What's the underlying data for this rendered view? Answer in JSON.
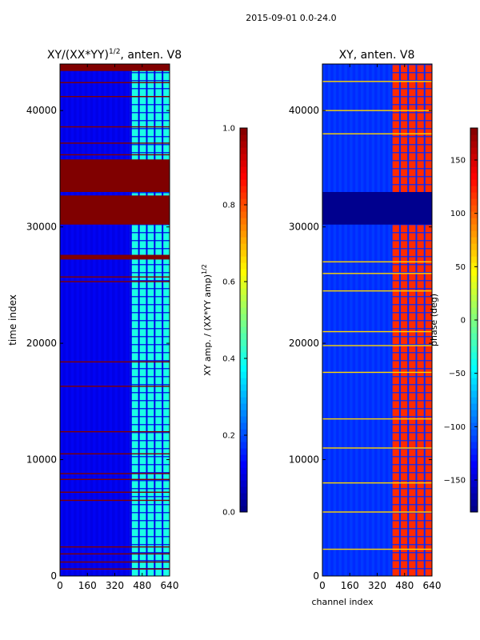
{
  "suptitle": "2015-09-01 0.0-24.0",
  "chart_data": [
    {
      "type": "heatmap",
      "title": "XY/(XX*YY)",
      "title_superscript": "1/2",
      "title_suffix": ", anten. V8",
      "xlabel": "",
      "ylabel": "time index",
      "xlim": [
        0,
        640
      ],
      "ylim": [
        0,
        44000
      ],
      "xticks": [
        "0",
        "160",
        "320",
        "480",
        "640"
      ],
      "xtick_values": [
        0,
        160,
        320,
        480,
        640
      ],
      "yticks": [
        "0",
        "10000",
        "20000",
        "30000",
        "40000"
      ],
      "ytick_values": [
        0,
        10000,
        20000,
        30000,
        40000
      ],
      "colormap": "jet",
      "colorbar": {
        "label": "XY amp. / (XX*YY amp)",
        "label_superscript": "1/2",
        "range": [
          0.0,
          1.0
        ],
        "ticks": [
          "0.0",
          "0.2",
          "0.4",
          "0.6",
          "0.8",
          "1.0"
        ],
        "tick_values": [
          0.0,
          0.2,
          0.4,
          0.6,
          0.8,
          1.0
        ]
      },
      "background_value": 0.1,
      "band_channels": [
        410,
        640
      ],
      "band_value": 0.4,
      "saturated_rows": [
        [
          30200,
          32700
        ],
        [
          33000,
          35800
        ],
        [
          27200,
          27600
        ],
        [
          43400,
          44000
        ]
      ],
      "flag_lines": [
        600,
        1200,
        1900,
        2500,
        6500,
        7200,
        8300,
        8800,
        10500,
        12400,
        16300,
        18400,
        25300,
        25700,
        36200,
        37200,
        38600,
        41200,
        42400
      ],
      "flag_value": 1.0
    },
    {
      "type": "heatmap",
      "title": "XY, anten. V8",
      "xlabel": "channel index",
      "ylabel": "",
      "xlim": [
        0,
        640
      ],
      "ylim": [
        0,
        44000
      ],
      "xticks": [
        "0",
        "160",
        "320",
        "480",
        "640"
      ],
      "xtick_values": [
        0,
        160,
        320,
        480,
        640
      ],
      "yticks": [
        "0",
        "10000",
        "20000",
        "30000",
        "40000"
      ],
      "ytick_values": [
        0,
        10000,
        20000,
        30000,
        40000
      ],
      "colormap": "jet",
      "colorbar": {
        "label": "phase (deg)",
        "range": [
          -180,
          180
        ],
        "ticks": [
          "−150",
          "−100",
          "−50",
          "0",
          "50",
          "100",
          "150"
        ],
        "tick_values": [
          -150,
          -100,
          -50,
          0,
          50,
          100,
          150
        ]
      },
      "background_value": -120,
      "band_channels": [
        400,
        640
      ],
      "band_value": 120,
      "dark_rows": [
        [
          30200,
          33000
        ]
      ],
      "dark_value": -175,
      "flag_lines": [
        2300,
        5500,
        8000,
        11000,
        13500,
        17500,
        19800,
        21000,
        24500,
        26000,
        27000,
        38000,
        40000,
        42500
      ],
      "flag_value": 60
    }
  ]
}
